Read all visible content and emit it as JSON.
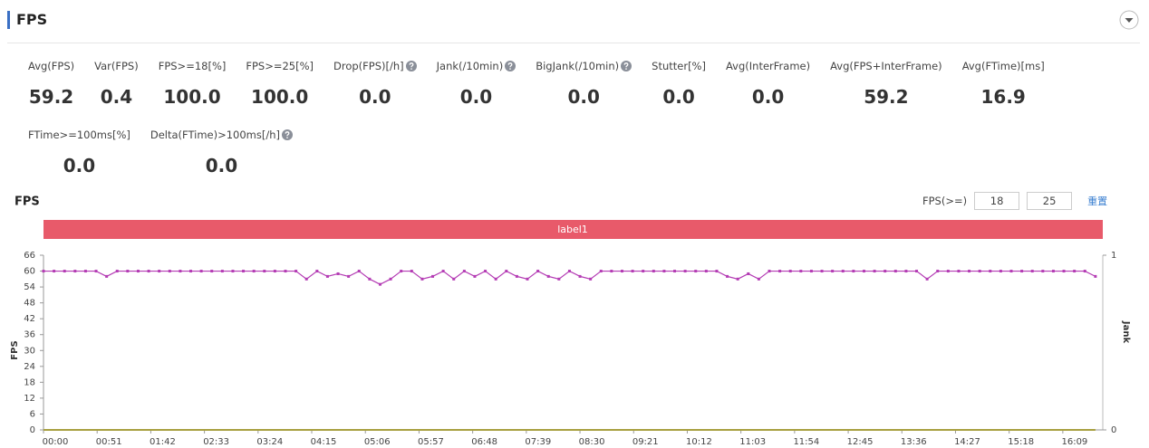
{
  "header": {
    "title": "FPS"
  },
  "metrics": [
    {
      "label": "Avg(FPS)",
      "value": "59.2",
      "help": false
    },
    {
      "label": "Var(FPS)",
      "value": "0.4",
      "help": false
    },
    {
      "label": "FPS>=18[%]",
      "value": "100.0",
      "help": false
    },
    {
      "label": "FPS>=25[%]",
      "value": "100.0",
      "help": false
    },
    {
      "label": "Drop(FPS)[/h]",
      "value": "0.0",
      "help": true
    },
    {
      "label": "Jank(/10min)",
      "value": "0.0",
      "help": true
    },
    {
      "label": "BigJank(/10min)",
      "value": "0.0",
      "help": true
    },
    {
      "label": "Stutter[%]",
      "value": "0.0",
      "help": false
    },
    {
      "label": "Avg(InterFrame)",
      "value": "0.0",
      "help": false
    },
    {
      "label": "Avg(FPS+InterFrame)",
      "value": "59.2",
      "help": false
    },
    {
      "label": "Avg(FTime)[ms]",
      "value": "16.9",
      "help": false
    },
    {
      "label": "FTime>=100ms[%]",
      "value": "0.0",
      "help": false
    },
    {
      "label": "Delta(FTime)>100ms[/h]",
      "value": "0.0",
      "help": true
    }
  ],
  "controls": {
    "label": "FPS(>=)",
    "thresholds": [
      18,
      25
    ],
    "reset": "重置"
  },
  "chart_data": {
    "type": "line",
    "title": "FPS",
    "band_label": "label1",
    "ylabel": "FPS",
    "y2label": "Jank",
    "x": [
      0,
      10,
      20,
      30,
      40,
      50,
      60,
      70,
      80,
      90,
      100,
      110,
      120,
      130,
      140,
      150,
      160,
      170,
      180,
      190,
      200,
      210,
      220,
      230,
      240,
      250,
      260,
      270,
      280,
      290,
      300,
      310,
      320,
      330,
      340,
      350,
      360,
      370,
      380,
      390,
      400,
      410,
      420,
      430,
      440,
      450,
      460,
      470,
      480,
      490,
      500,
      510,
      520,
      530,
      540,
      550,
      560,
      570,
      580,
      590,
      600,
      610,
      620,
      630,
      640,
      650,
      660,
      670,
      680,
      690,
      700,
      710,
      720,
      730,
      740,
      750,
      760,
      770,
      780,
      790,
      800,
      810,
      820,
      830,
      840,
      850,
      860,
      870,
      880,
      890,
      900,
      910,
      920,
      930,
      940,
      950,
      960,
      970,
      980,
      990,
      1000
    ],
    "xlim": [
      0,
      1007
    ],
    "xticks": [
      {
        "value": 0,
        "label": "00:00"
      },
      {
        "value": 51,
        "label": "00:51"
      },
      {
        "value": 102,
        "label": "01:42"
      },
      {
        "value": 153,
        "label": "02:33"
      },
      {
        "value": 204,
        "label": "03:24"
      },
      {
        "value": 255,
        "label": "04:15"
      },
      {
        "value": 306,
        "label": "05:06"
      },
      {
        "value": 357,
        "label": "05:57"
      },
      {
        "value": 408,
        "label": "06:48"
      },
      {
        "value": 459,
        "label": "07:39"
      },
      {
        "value": 510,
        "label": "08:30"
      },
      {
        "value": 561,
        "label": "09:21"
      },
      {
        "value": 612,
        "label": "10:12"
      },
      {
        "value": 663,
        "label": "11:03"
      },
      {
        "value": 714,
        "label": "11:54"
      },
      {
        "value": 765,
        "label": "12:45"
      },
      {
        "value": 816,
        "label": "13:36"
      },
      {
        "value": 867,
        "label": "14:27"
      },
      {
        "value": 918,
        "label": "15:18"
      },
      {
        "value": 969,
        "label": "16:09"
      }
    ],
    "ylim": [
      0,
      66
    ],
    "yticks": [
      0,
      6,
      12,
      18,
      24,
      30,
      36,
      42,
      48,
      54,
      60,
      66
    ],
    "y2lim": [
      0,
      1
    ],
    "y2ticks": [
      0,
      1
    ],
    "series": [
      {
        "color": "#b43cb4",
        "marker": true,
        "values": [
          60,
          60,
          60,
          60,
          60,
          60,
          58,
          60,
          60,
          60,
          60,
          60,
          60,
          60,
          60,
          60,
          60,
          60,
          60,
          60,
          60,
          60,
          60,
          60,
          60,
          57,
          60,
          58,
          59,
          58,
          60,
          57,
          55,
          57,
          60,
          60,
          57,
          58,
          60,
          57,
          60,
          58,
          60,
          57,
          60,
          58,
          57,
          60,
          58,
          57,
          60,
          58,
          57,
          60,
          60,
          60,
          60,
          60,
          60,
          60,
          60,
          60,
          60,
          60,
          60,
          58,
          57,
          59,
          57,
          60,
          60,
          60,
          60,
          60,
          60,
          60,
          60,
          60,
          60,
          60,
          60,
          60,
          60,
          60,
          57,
          60,
          60,
          60,
          60,
          60,
          60,
          60,
          60,
          60,
          60,
          60,
          60,
          60,
          60,
          60,
          58
        ]
      },
      {
        "color": "#a8a040",
        "axis": "y2",
        "marker": false,
        "values": [
          0,
          0,
          0,
          0,
          0,
          0,
          0,
          0,
          0,
          0,
          0,
          0,
          0,
          0,
          0,
          0,
          0,
          0,
          0,
          0,
          0,
          0,
          0,
          0,
          0,
          0,
          0,
          0,
          0,
          0,
          0,
          0,
          0,
          0,
          0,
          0,
          0,
          0,
          0,
          0,
          0,
          0,
          0,
          0,
          0,
          0,
          0,
          0,
          0,
          0,
          0,
          0,
          0,
          0,
          0,
          0,
          0,
          0,
          0,
          0,
          0,
          0,
          0,
          0,
          0,
          0,
          0,
          0,
          0,
          0,
          0,
          0,
          0,
          0,
          0,
          0,
          0,
          0,
          0,
          0,
          0,
          0,
          0,
          0,
          0,
          0,
          0,
          0,
          0,
          0,
          0,
          0,
          0,
          0,
          0,
          0,
          0,
          0,
          0,
          0,
          0
        ]
      }
    ]
  }
}
